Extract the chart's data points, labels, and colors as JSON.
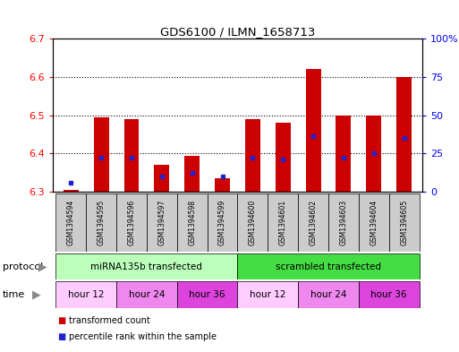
{
  "title": "GDS6100 / ILMN_1658713",
  "samples": [
    "GSM1394594",
    "GSM1394595",
    "GSM1394596",
    "GSM1394597",
    "GSM1394598",
    "GSM1394599",
    "GSM1394600",
    "GSM1394601",
    "GSM1394602",
    "GSM1394603",
    "GSM1394604",
    "GSM1394605"
  ],
  "bar_values": [
    6.305,
    6.495,
    6.49,
    6.37,
    6.395,
    6.335,
    6.49,
    6.48,
    6.62,
    6.5,
    6.5,
    6.6
  ],
  "blue_dot_values": [
    6.325,
    6.39,
    6.39,
    6.34,
    6.35,
    6.34,
    6.39,
    6.385,
    6.445,
    6.39,
    6.4,
    6.44
  ],
  "bar_bottom": 6.3,
  "ylim_left": [
    6.3,
    6.7
  ],
  "ylim_right": [
    0,
    100
  ],
  "yticks_left": [
    6.3,
    6.4,
    6.5,
    6.6,
    6.7
  ],
  "yticks_right": [
    0,
    25,
    50,
    75,
    100
  ],
  "ytick_labels_right": [
    "0",
    "25",
    "50",
    "75",
    "100%"
  ],
  "bar_color": "#cc0000",
  "blue_dot_color": "#2222cc",
  "protocol_groups": [
    {
      "label": "miRNA135b transfected",
      "start": 0,
      "end": 6,
      "color": "#bbffbb"
    },
    {
      "label": "scrambled transfected",
      "start": 6,
      "end": 12,
      "color": "#44dd44"
    }
  ],
  "time_groups": [
    {
      "label": "hour 12",
      "start": 0,
      "end": 2,
      "color": "#ffccff"
    },
    {
      "label": "hour 24",
      "start": 2,
      "end": 4,
      "color": "#ee88ee"
    },
    {
      "label": "hour 36",
      "start": 4,
      "end": 6,
      "color": "#dd44dd"
    },
    {
      "label": "hour 12",
      "start": 6,
      "end": 8,
      "color": "#ffccff"
    },
    {
      "label": "hour 24",
      "start": 8,
      "end": 10,
      "color": "#ee88ee"
    },
    {
      "label": "hour 36",
      "start": 10,
      "end": 12,
      "color": "#dd44dd"
    }
  ],
  "protocol_label": "protocol",
  "time_label": "time",
  "legend_items": [
    {
      "color": "#cc0000",
      "label": "transformed count"
    },
    {
      "color": "#2222cc",
      "label": "percentile rank within the sample"
    }
  ],
  "background_color": "#ffffff",
  "bar_width": 0.5,
  "fig_width": 5.13,
  "fig_height": 3.93,
  "dpi": 100
}
